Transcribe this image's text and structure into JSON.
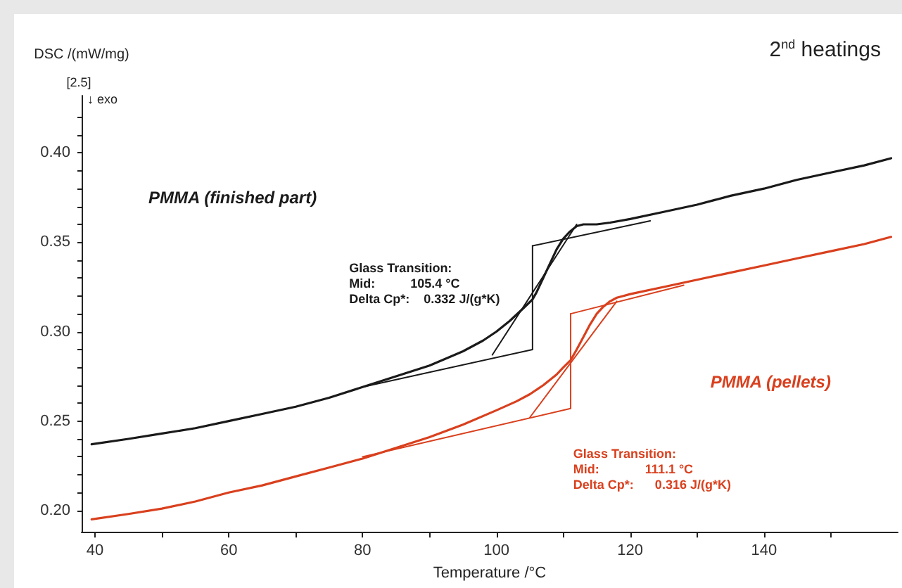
{
  "chart_data": {
    "type": "line",
    "title": "2$^{nd}$ heatings",
    "xlabel": "Temperature /°C",
    "ylabel": "DSC /(mW/mg)",
    "annotations": [
      "[2.5]",
      "↓ exo",
      "Glass Transition:\nMid:          105.4 °C\nDelta Cp*:    0.332 J/(g*K)",
      "Glass Transition:\nMid:             111.1 °C\nDelta Cp*:      0.316 J/(g*K)"
    ],
    "xlim": [
      38,
      160
    ],
    "ylim": [
      0.188,
      0.432
    ],
    "xticks": [
      40,
      {
        "value": 50,
        "label": null
      },
      60,
      {
        "value": 70,
        "label": null
      },
      80,
      {
        "value": 90,
        "label": null
      },
      100,
      {
        "value": 110,
        "label": null
      },
      120,
      {
        "value": 130,
        "label": null
      },
      140,
      {
        "value": 150,
        "label": null
      }
    ],
    "yticks": [
      {
        "value": 0.2,
        "label": "0.20"
      },
      {
        "value": 0.21,
        "label": null
      },
      {
        "value": 0.22,
        "label": null
      },
      {
        "value": 0.23,
        "label": null
      },
      {
        "value": 0.24,
        "label": null
      },
      0.25,
      {
        "value": 0.26,
        "label": null
      },
      {
        "value": 0.27,
        "label": null
      },
      {
        "value": 0.28,
        "label": null
      },
      {
        "value": 0.29,
        "label": null
      },
      {
        "value": 0.3,
        "label": "0.30"
      },
      {
        "value": 0.31,
        "label": null
      },
      {
        "value": 0.32,
        "label": null
      },
      {
        "value": 0.33,
        "label": null
      },
      {
        "value": 0.34,
        "label": null
      },
      0.35,
      {
        "value": 0.36,
        "label": null
      },
      {
        "value": 0.37,
        "label": null
      },
      {
        "value": 0.38,
        "label": null
      },
      {
        "value": 0.39,
        "label": null
      },
      {
        "value": 0.4,
        "label": "0.40"
      },
      {
        "value": 0.41,
        "label": null
      },
      {
        "value": 0.42,
        "label": null
      }
    ],
    "grid": false,
    "legend": false,
    "marker": "none",
    "line_style": "solid",
    "series": [
      {
        "name": "PMMA (finished part)",
        "color": "#1a1a1a",
        "x": [
          39.5,
          45,
          50,
          55,
          60,
          65,
          70,
          75,
          80,
          85,
          90,
          95,
          98,
          100,
          102,
          104,
          105.4,
          106,
          107,
          108,
          109,
          110,
          111,
          112,
          113,
          114,
          115,
          117,
          120,
          125,
          130,
          135,
          140,
          145,
          150,
          155,
          159
        ],
        "values": [
          0.237,
          0.24,
          0.243,
          0.246,
          0.25,
          0.254,
          0.258,
          0.263,
          0.269,
          0.275,
          0.281,
          0.289,
          0.295,
          0.3,
          0.306,
          0.313,
          0.318,
          0.322,
          0.33,
          0.338,
          0.346,
          0.352,
          0.356,
          0.359,
          0.36,
          0.36,
          0.36,
          0.361,
          0.363,
          0.367,
          0.371,
          0.376,
          0.38,
          0.385,
          0.389,
          0.393,
          0.397
        ]
      },
      {
        "name": "PMMA (pellets)",
        "color": "#d9401e",
        "x": [
          39.5,
          45,
          50,
          55,
          60,
          65,
          70,
          75,
          80,
          85,
          90,
          95,
          100,
          103,
          105,
          107,
          109,
          110,
          111.1,
          112,
          113,
          114,
          115,
          116,
          117,
          118,
          119,
          120,
          125,
          130,
          135,
          140,
          145,
          150,
          155,
          159
        ],
        "values": [
          0.195,
          0.198,
          0.201,
          0.205,
          0.21,
          0.214,
          0.219,
          0.224,
          0.229,
          0.235,
          0.241,
          0.248,
          0.256,
          0.261,
          0.265,
          0.27,
          0.276,
          0.28,
          0.284,
          0.29,
          0.297,
          0.304,
          0.31,
          0.314,
          0.317,
          0.319,
          0.32,
          0.321,
          0.325,
          0.329,
          0.333,
          0.337,
          0.341,
          0.345,
          0.349,
          0.353
        ]
      },
      {
        "color": "#1a1a1a",
        "x": [
          80,
          105.4
        ],
        "values": [
          0.269,
          0.29
        ]
      },
      {
        "color": "#1a1a1a",
        "x": [
          105.4,
          123
        ],
        "values": [
          0.348,
          0.362
        ]
      },
      {
        "color": "#1a1a1a",
        "x": [
          99.4,
          112
        ],
        "values": [
          0.287,
          0.36
        ]
      },
      {
        "color": "#1a1a1a",
        "x": [
          105.4,
          105.4
        ],
        "values": [
          0.29,
          0.348
        ]
      },
      {
        "color": "#d9401e",
        "x": [
          80,
          111.1
        ],
        "values": [
          0.23,
          0.257
        ]
      },
      {
        "color": "#d9401e",
        "x": [
          111.1,
          128
        ],
        "values": [
          0.31,
          0.326
        ]
      },
      {
        "color": "#d9401e",
        "x": [
          105,
          118
        ],
        "values": [
          0.252,
          0.317
        ]
      },
      {
        "color": "#d9401e",
        "x": [
          111.1,
          111.1
        ],
        "values": [
          0.257,
          0.31
        ]
      }
    ]
  }
}
